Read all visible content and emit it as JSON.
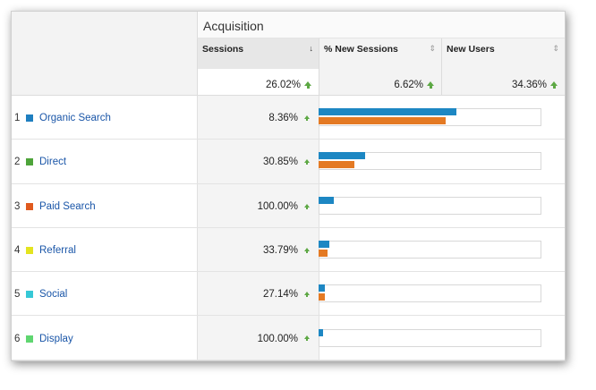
{
  "header": {
    "group_title": "Acquisition",
    "columns": [
      {
        "label": "Sessions",
        "sort_icon": "↓"
      },
      {
        "label": "% New Sessions",
        "sort_icon": "⇕"
      },
      {
        "label": "New Users",
        "sort_icon": "⇕"
      }
    ]
  },
  "totals": {
    "sessions_change": "26.02%",
    "new_sessions_change": "6.62%",
    "new_users_change": "34.36%"
  },
  "colors": {
    "link": "#1a56a8",
    "trend_up": "#5da844",
    "bar_blue": "#1d87c3",
    "bar_orange": "#e47a24"
  },
  "rows": [
    {
      "num": "1",
      "label": "Organic Search",
      "color": "#1f7fc0",
      "change": "8.36%",
      "bar_primary": 0.62,
      "bar_secondary": 0.57
    },
    {
      "num": "2",
      "label": "Direct",
      "color": "#4ea43a",
      "change": "30.85%",
      "bar_primary": 0.21,
      "bar_secondary": 0.16
    },
    {
      "num": "3",
      "label": "Paid Search",
      "color": "#e05a1e",
      "change": "100.00%",
      "bar_primary": 0.07,
      "bar_secondary": 0
    },
    {
      "num": "4",
      "label": "Referral",
      "color": "#e4e41f",
      "change": "33.79%",
      "bar_primary": 0.05,
      "bar_secondary": 0.04
    },
    {
      "num": "5",
      "label": "Social",
      "color": "#36c8d6",
      "change": "27.14%",
      "bar_primary": 0.03,
      "bar_secondary": 0.03
    },
    {
      "num": "6",
      "label": "Display",
      "color": "#5fd670",
      "change": "100.00%",
      "bar_primary": 0.02,
      "bar_secondary": 0
    }
  ]
}
